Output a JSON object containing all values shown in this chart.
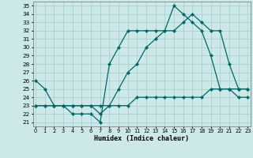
{
  "xlabel": "Humidex (Indice chaleur)",
  "bg_color": "#cce8e8",
  "grid_color": "#aacece",
  "line_color": "#006868",
  "x_ticks": [
    0,
    1,
    2,
    3,
    4,
    5,
    6,
    7,
    8,
    9,
    10,
    11,
    12,
    13,
    14,
    15,
    16,
    17,
    18,
    19,
    20,
    21,
    22,
    23
  ],
  "ylim": [
    20.5,
    35.5
  ],
  "xlim": [
    -0.3,
    23.3
  ],
  "yticks": [
    21,
    22,
    23,
    24,
    25,
    26,
    27,
    28,
    29,
    30,
    31,
    32,
    33,
    34,
    35
  ],
  "line_top": [
    26,
    25,
    23,
    23,
    22,
    22,
    22,
    21,
    28,
    30,
    32,
    32,
    32,
    32,
    32,
    35,
    34,
    33,
    32,
    29,
    25,
    25,
    24,
    24
  ],
  "line_mid": [
    23,
    23,
    23,
    23,
    23,
    23,
    23,
    22,
    23,
    25,
    27,
    28,
    30,
    31,
    32,
    32,
    33,
    34,
    33,
    32,
    32,
    28,
    25,
    25
  ],
  "line_bot": [
    23,
    23,
    23,
    23,
    23,
    23,
    23,
    23,
    23,
    23,
    23,
    24,
    24,
    24,
    24,
    24,
    24,
    24,
    24,
    25,
    25,
    25,
    25,
    25
  ]
}
